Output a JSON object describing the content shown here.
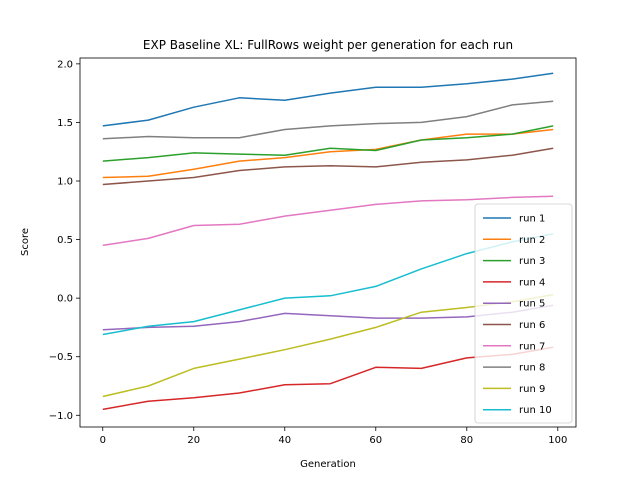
{
  "chart_data": {
    "type": "line",
    "title": "EXP Baseline XL: FullRows weight per generation for each run",
    "xlabel": "Generation",
    "ylabel": "Score",
    "xlim": [
      -5,
      104
    ],
    "ylim": [
      -1.1,
      2.05
    ],
    "xticks": [
      0,
      20,
      40,
      60,
      80,
      100
    ],
    "yticks": [
      -1.0,
      -0.5,
      0.0,
      0.5,
      1.0,
      1.5,
      2.0
    ],
    "ytick_labels": [
      "−1.0",
      "−0.5",
      "0.0",
      "0.5",
      "1.0",
      "1.5",
      "2.0"
    ],
    "grid": false,
    "legend_position": "lower-right",
    "x": [
      0,
      10,
      20,
      30,
      40,
      50,
      60,
      70,
      80,
      90,
      99
    ],
    "series": [
      {
        "name": "run 1",
        "color": "#1f77b4",
        "values": [
          1.47,
          1.52,
          1.63,
          1.71,
          1.69,
          1.75,
          1.8,
          1.8,
          1.83,
          1.87,
          1.92
        ]
      },
      {
        "name": "run 2",
        "color": "#ff7f0e",
        "values": [
          1.03,
          1.04,
          1.1,
          1.17,
          1.2,
          1.25,
          1.27,
          1.35,
          1.4,
          1.4,
          1.44
        ]
      },
      {
        "name": "run 3",
        "color": "#2ca02c",
        "values": [
          1.17,
          1.2,
          1.24,
          1.23,
          1.22,
          1.28,
          1.26,
          1.35,
          1.37,
          1.4,
          1.47
        ]
      },
      {
        "name": "run 4",
        "color": "#d62728",
        "values": [
          -0.95,
          -0.88,
          -0.85,
          -0.81,
          -0.74,
          -0.73,
          -0.59,
          -0.6,
          -0.51,
          -0.48,
          -0.42
        ]
      },
      {
        "name": "run 5",
        "color": "#9467bd",
        "values": [
          -0.27,
          -0.25,
          -0.24,
          -0.2,
          -0.13,
          -0.15,
          -0.17,
          -0.17,
          -0.16,
          -0.12,
          -0.06
        ]
      },
      {
        "name": "run 6",
        "color": "#8c564b",
        "values": [
          0.97,
          1.0,
          1.03,
          1.09,
          1.12,
          1.13,
          1.12,
          1.16,
          1.18,
          1.22,
          1.28
        ]
      },
      {
        "name": "run 7",
        "color": "#e377c2",
        "values": [
          0.45,
          0.51,
          0.62,
          0.63,
          0.7,
          0.75,
          0.8,
          0.83,
          0.84,
          0.86,
          0.87
        ]
      },
      {
        "name": "run 8",
        "color": "#7f7f7f",
        "values": [
          1.36,
          1.38,
          1.37,
          1.37,
          1.44,
          1.47,
          1.49,
          1.5,
          1.55,
          1.65,
          1.68
        ]
      },
      {
        "name": "run 9",
        "color": "#bcbd22",
        "values": [
          -0.84,
          -0.75,
          -0.6,
          -0.52,
          -0.44,
          -0.35,
          -0.25,
          -0.12,
          -0.08,
          -0.03,
          0.03
        ]
      },
      {
        "name": "run 10",
        "color": "#17becf",
        "values": [
          -0.31,
          -0.24,
          -0.2,
          -0.1,
          0.0,
          0.02,
          0.1,
          0.25,
          0.38,
          0.48,
          0.55
        ]
      }
    ]
  }
}
